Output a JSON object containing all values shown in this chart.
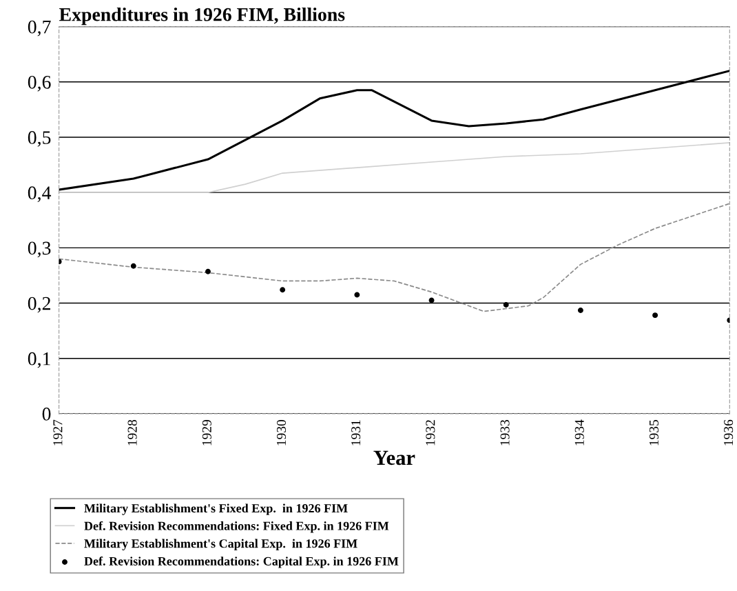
{
  "chart_data": {
    "type": "line",
    "title": "Expenditures in 1926 FIM, Billions",
    "xlabel": "Year",
    "xlim": [
      1927,
      1936
    ],
    "xticks": [
      1927,
      1928,
      1929,
      1930,
      1931,
      1932,
      1933,
      1934,
      1935,
      1936
    ],
    "ylim": [
      0,
      0.7
    ],
    "yticks": [
      0,
      {
        "value": 0.1,
        "label": "0,1"
      },
      {
        "value": 0.2,
        "label": "0,2"
      },
      {
        "value": 0.3,
        "label": "0,3"
      },
      {
        "value": 0.4,
        "label": "0,4"
      },
      {
        "value": 0.5,
        "label": "0,5"
      },
      {
        "value": 0.6,
        "label": "0,6"
      },
      {
        "value": 0.7,
        "label": "0,7"
      }
    ],
    "grid": "y",
    "legend": "bottom",
    "series": [
      {
        "name": "Military Establishment's Fixed Exp.  in 1926 FIM",
        "color": "#000000",
        "line_style": "solid",
        "marker": "none",
        "x": [
          1927,
          1928,
          1929,
          1930,
          1930.5,
          1931,
          1931.2,
          1932,
          1932.5,
          1933,
          1933.5,
          1934,
          1935,
          1936
        ],
        "values": [
          0.405,
          0.425,
          0.46,
          0.53,
          0.57,
          0.585,
          0.585,
          0.53,
          0.52,
          0.525,
          0.532,
          0.55,
          0.585,
          0.62
        ]
      },
      {
        "name": "Def. Revision Recommendations: Fixed Exp. in 1926 FIM",
        "color": "#d0d0d0",
        "line_style": "solid",
        "marker": "none",
        "x": [
          1927,
          1928,
          1929,
          1929.5,
          1930,
          1931,
          1932,
          1933,
          1934,
          1935,
          1936
        ],
        "values": [
          0.4,
          0.4,
          0.4,
          0.415,
          0.435,
          0.445,
          0.455,
          0.465,
          0.47,
          0.48,
          0.49
        ]
      },
      {
        "name": "Military Establishment's Capital Exp.  in 1926 FIM",
        "color": "#8a8a8a",
        "line_style": "dashed",
        "marker": "none",
        "x": [
          1927,
          1928,
          1929,
          1930,
          1930.5,
          1931,
          1931.5,
          1932,
          1932.7,
          1933,
          1933.3,
          1933.5,
          1934,
          1934.5,
          1935,
          1936
        ],
        "values": [
          0.28,
          0.265,
          0.255,
          0.24,
          0.24,
          0.245,
          0.24,
          0.22,
          0.185,
          0.19,
          0.195,
          0.21,
          0.27,
          0.305,
          0.335,
          0.38
        ]
      },
      {
        "name": "Def. Revision Recommendations: Capital Exp. in 1926 FIM",
        "color": "#000000",
        "type": "scatter",
        "marker": "circle",
        "x": [
          1927,
          1928,
          1929,
          1930,
          1931,
          1932,
          1933,
          1934,
          1935,
          1936
        ],
        "values": [
          0.275,
          0.267,
          0.257,
          0.224,
          0.215,
          0.205,
          0.197,
          0.187,
          0.178,
          0.169
        ]
      }
    ]
  }
}
